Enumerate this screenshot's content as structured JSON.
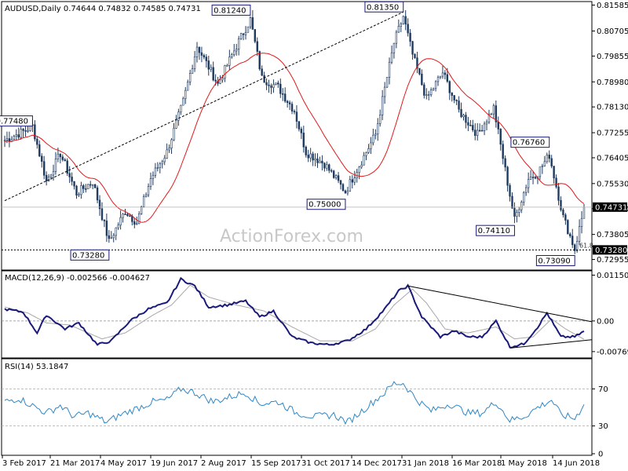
{
  "header": {
    "main": "AUDUSD,Daily  0.74644 0.74832 0.74585 0.74731",
    "macd": "MACD(12,26,9) -0.002566 -0.004627",
    "rsi": "RSI(14) 53.1847"
  },
  "watermark": "ActionForex.com",
  "colors": {
    "candle": "#1f3a60",
    "ma": "#e0191b",
    "macd_line": "#1a1a7a",
    "signal_line": "#a8a8a8",
    "rsi_line": "#2f87c6",
    "trendline": "#000000",
    "label_border": "#1a1a7a"
  },
  "chart_data": [
    {
      "type": "candlestick",
      "panel": "price",
      "symbol": "AUDUSD",
      "timeframe": "Daily",
      "ohlc_last": {
        "open": 0.74644,
        "high": 0.74832,
        "low": 0.74585,
        "close": 0.74731
      },
      "ylim": [
        0.7265,
        0.8165
      ],
      "yticks": [
        "0.81585",
        "0.80705",
        "0.79855",
        "0.78980",
        "0.78130",
        "0.77255",
        "0.76405",
        "0.75530",
        "0.74680",
        "0.73805",
        "0.72955"
      ],
      "current_price_label": "0.74731",
      "support_label": "0.73280",
      "fib_note": "61.8",
      "x_labels": [
        "3 Feb 2017",
        "21 Mar 2017",
        "4 May 2017",
        "19 Jun 2017",
        "2 Aug 2017",
        "15 Sep 2017",
        "31 Oct 2017",
        "14 Dec 2017",
        "31 Jan 2018",
        "16 Mar 2018",
        "1 May 2018",
        "14 Jun 2018"
      ],
      "annotations": [
        {
          "label": "0.77480",
          "value": 0.7748,
          "index": 12,
          "anchor": "left-above"
        },
        {
          "label": "0.73280",
          "value": 0.7328,
          "index": 45,
          "anchor": "left-below"
        },
        {
          "label": "0.81240",
          "value": 0.8124,
          "index": 106,
          "anchor": "left-above"
        },
        {
          "label": "0.75000",
          "value": 0.75,
          "index": 147,
          "anchor": "left-below"
        },
        {
          "label": "0.81350",
          "value": 0.8135,
          "index": 172,
          "anchor": "left-above"
        },
        {
          "label": "0.76760",
          "value": 0.7676,
          "index": 235,
          "anchor": "left-above"
        },
        {
          "label": "0.74110",
          "value": 0.7411,
          "index": 220,
          "anchor": "left-below"
        },
        {
          "label": "0.73090",
          "value": 0.7309,
          "index": 246,
          "anchor": "left-below"
        }
      ],
      "anchors": [
        [
          0,
          0.77
        ],
        [
          8,
          0.773
        ],
        [
          12,
          0.7748
        ],
        [
          18,
          0.756
        ],
        [
          24,
          0.7655
        ],
        [
          31,
          0.752
        ],
        [
          38,
          0.756
        ],
        [
          45,
          0.7355
        ],
        [
          52,
          0.746
        ],
        [
          57,
          0.742
        ],
        [
          63,
          0.757
        ],
        [
          70,
          0.766
        ],
        [
          77,
          0.783
        ],
        [
          83,
          0.802
        ],
        [
          92,
          0.789
        ],
        [
          100,
          0.802
        ],
        [
          106,
          0.811
        ],
        [
          111,
          0.791
        ],
        [
          118,
          0.788
        ],
        [
          125,
          0.78
        ],
        [
          130,
          0.766
        ],
        [
          138,
          0.762
        ],
        [
          147,
          0.7525
        ],
        [
          152,
          0.76
        ],
        [
          160,
          0.772
        ],
        [
          168,
          0.803
        ],
        [
          172,
          0.812
        ],
        [
          176,
          0.799
        ],
        [
          182,
          0.784
        ],
        [
          189,
          0.793
        ],
        [
          196,
          0.78
        ],
        [
          204,
          0.772
        ],
        [
          211,
          0.781
        ],
        [
          220,
          0.743
        ],
        [
          226,
          0.757
        ],
        [
          230,
          0.759
        ],
        [
          235,
          0.765
        ],
        [
          241,
          0.744
        ],
        [
          246,
          0.733
        ],
        [
          250,
          0.747
        ]
      ],
      "ma_label": "",
      "series_count": 251
    },
    {
      "type": "line",
      "panel": "macd",
      "title": "MACD(12,26,9)",
      "values_last": {
        "macd": -0.002566,
        "signal": -0.004627
      },
      "ylim": [
        -0.0091,
        0.0122
      ],
      "yticks": [
        "0.011508",
        "0.00",
        "-0.007694"
      ],
      "macd_anchors": [
        [
          0,
          0.003
        ],
        [
          8,
          0.0022
        ],
        [
          14,
          -0.003
        ],
        [
          18,
          0.0015
        ],
        [
          26,
          -0.002
        ],
        [
          32,
          -0.0005
        ],
        [
          40,
          -0.006
        ],
        [
          46,
          -0.005
        ],
        [
          54,
          0.0
        ],
        [
          62,
          0.003
        ],
        [
          70,
          0.0045
        ],
        [
          76,
          0.0105
        ],
        [
          82,
          0.0088
        ],
        [
          88,
          0.0035
        ],
        [
          96,
          0.004
        ],
        [
          104,
          0.005
        ],
        [
          110,
          0.001
        ],
        [
          116,
          0.0025
        ],
        [
          124,
          -0.004
        ],
        [
          132,
          -0.0055
        ],
        [
          140,
          -0.006
        ],
        [
          148,
          -0.005
        ],
        [
          156,
          -0.002
        ],
        [
          164,
          0.003
        ],
        [
          170,
          0.0075
        ],
        [
          174,
          0.0088
        ],
        [
          180,
          0.001
        ],
        [
          188,
          -0.004
        ],
        [
          194,
          -0.0025
        ],
        [
          200,
          -0.004
        ],
        [
          206,
          -0.004
        ],
        [
          212,
          0.0
        ],
        [
          218,
          -0.0065
        ],
        [
          224,
          -0.0058
        ],
        [
          230,
          -0.0015
        ],
        [
          234,
          0.002
        ],
        [
          240,
          -0.004
        ],
        [
          246,
          -0.004
        ],
        [
          250,
          -0.0026
        ]
      ],
      "signal_anchors": [
        [
          0,
          0.0035
        ],
        [
          10,
          0.002
        ],
        [
          18,
          -0.0005
        ],
        [
          28,
          -0.001
        ],
        [
          42,
          -0.0045
        ],
        [
          52,
          -0.003
        ],
        [
          64,
          0.0015
        ],
        [
          72,
          0.004
        ],
        [
          80,
          0.009
        ],
        [
          88,
          0.006
        ],
        [
          100,
          0.004
        ],
        [
          112,
          0.0025
        ],
        [
          124,
          -0.0015
        ],
        [
          136,
          -0.005
        ],
        [
          150,
          -0.005
        ],
        [
          160,
          -0.002
        ],
        [
          168,
          0.004
        ],
        [
          176,
          0.008
        ],
        [
          182,
          0.0045
        ],
        [
          190,
          -0.002
        ],
        [
          200,
          -0.003
        ],
        [
          212,
          -0.0015
        ],
        [
          220,
          -0.0045
        ],
        [
          228,
          -0.004
        ],
        [
          236,
          0.0005
        ],
        [
          242,
          -0.002
        ],
        [
          250,
          -0.0046
        ]
      ],
      "trendlines": [
        {
          "x1": 174,
          "y1": 0.0088,
          "x2": 260,
          "y2": -0.0002
        },
        {
          "x1": 218,
          "y1": -0.0068,
          "x2": 260,
          "y2": -0.0047
        }
      ]
    },
    {
      "type": "line",
      "panel": "rsi",
      "title": "RSI(14)",
      "value_last": 53.1847,
      "ylim": [
        0,
        100
      ],
      "yticks": [
        "70",
        "30",
        "0"
      ],
      "levels": [
        70,
        30
      ],
      "anchors": [
        [
          0,
          56
        ],
        [
          6,
          60
        ],
        [
          12,
          52
        ],
        [
          18,
          44
        ],
        [
          24,
          52
        ],
        [
          30,
          40
        ],
        [
          36,
          44
        ],
        [
          44,
          34
        ],
        [
          50,
          42
        ],
        [
          58,
          50
        ],
        [
          64,
          56
        ],
        [
          70,
          58
        ],
        [
          76,
          70
        ],
        [
          82,
          66
        ],
        [
          90,
          56
        ],
        [
          98,
          62
        ],
        [
          104,
          66
        ],
        [
          110,
          54
        ],
        [
          118,
          56
        ],
        [
          126,
          44
        ],
        [
          134,
          40
        ],
        [
          142,
          42
        ],
        [
          148,
          34
        ],
        [
          156,
          50
        ],
        [
          164,
          66
        ],
        [
          168,
          76
        ],
        [
          172,
          76
        ],
        [
          178,
          58
        ],
        [
          184,
          46
        ],
        [
          192,
          54
        ],
        [
          200,
          44
        ],
        [
          206,
          44
        ],
        [
          212,
          56
        ],
        [
          218,
          36
        ],
        [
          224,
          40
        ],
        [
          230,
          50
        ],
        [
          236,
          58
        ],
        [
          240,
          42
        ],
        [
          246,
          38
        ],
        [
          250,
          53
        ]
      ]
    }
  ]
}
